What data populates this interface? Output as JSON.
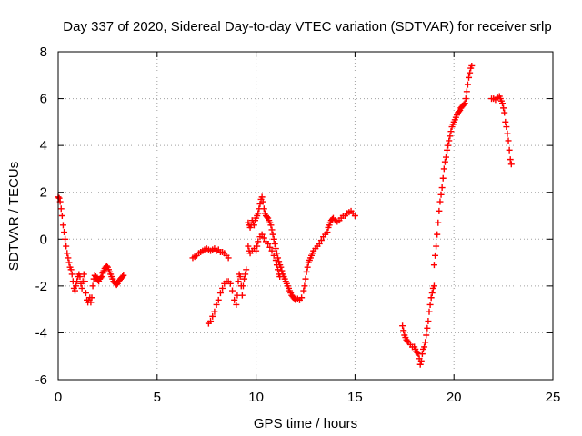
{
  "chart_data": {
    "type": "scatter",
    "title": "Day 337 of 2020, Sidereal Day-to-day VTEC variation (SDTVAR) for receiver srlp",
    "xlabel": "GPS time / hours",
    "ylabel": "SDTVAR / TECUs",
    "xlim": [
      0,
      25
    ],
    "ylim": [
      -6,
      8
    ],
    "xticks": [
      "0",
      "5",
      "10",
      "15",
      "20",
      "25"
    ],
    "yticks": [
      "-6",
      "-4",
      "-2",
      "0",
      "2",
      "4",
      "6",
      "8"
    ],
    "grid": true,
    "marker": "+",
    "series_color": "#ff0000",
    "segments": [
      [
        [
          0.0,
          1.8
        ],
        [
          0.05,
          1.75
        ],
        [
          0.1,
          1.6
        ],
        [
          0.15,
          1.3
        ],
        [
          0.2,
          1.0
        ],
        [
          0.25,
          0.6
        ],
        [
          0.3,
          0.3
        ],
        [
          0.35,
          0.0
        ],
        [
          0.4,
          -0.3
        ],
        [
          0.45,
          -0.6
        ],
        [
          0.5,
          -0.8
        ],
        [
          0.55,
          -1.0
        ],
        [
          0.6,
          -1.2
        ],
        [
          0.65,
          -1.3
        ],
        [
          0.7,
          -1.5
        ],
        [
          0.75,
          -1.8
        ],
        [
          0.8,
          -2.1
        ],
        [
          0.85,
          -2.2
        ],
        [
          0.9,
          -2.0
        ],
        [
          0.95,
          -1.8
        ],
        [
          1.0,
          -1.6
        ],
        [
          1.05,
          -1.5
        ],
        [
          1.1,
          -1.6
        ],
        [
          1.15,
          -1.9
        ],
        [
          1.2,
          -2.1
        ],
        [
          1.25,
          -1.8
        ],
        [
          1.3,
          -1.5
        ],
        [
          1.35,
          -1.8
        ],
        [
          1.4,
          -2.3
        ],
        [
          1.45,
          -2.6
        ],
        [
          1.5,
          -2.7
        ],
        [
          1.55,
          -2.6
        ],
        [
          1.6,
          -2.5
        ],
        [
          1.65,
          -2.7
        ],
        [
          1.7,
          -2.5
        ],
        [
          1.75,
          -2.0
        ],
        [
          1.8,
          -1.7
        ],
        [
          1.85,
          -1.55
        ],
        [
          1.9,
          -1.6
        ],
        [
          1.95,
          -1.65
        ],
        [
          2.0,
          -1.75
        ],
        [
          2.05,
          -1.8
        ],
        [
          2.1,
          -1.7
        ],
        [
          2.15,
          -1.65
        ],
        [
          2.2,
          -1.6
        ],
        [
          2.25,
          -1.45
        ],
        [
          2.3,
          -1.35
        ],
        [
          2.35,
          -1.25
        ],
        [
          2.4,
          -1.2
        ],
        [
          2.45,
          -1.15
        ],
        [
          2.5,
          -1.2
        ],
        [
          2.55,
          -1.3
        ],
        [
          2.6,
          -1.4
        ],
        [
          2.65,
          -1.5
        ],
        [
          2.7,
          -1.6
        ],
        [
          2.75,
          -1.7
        ],
        [
          2.8,
          -1.8
        ],
        [
          2.85,
          -1.85
        ],
        [
          2.9,
          -1.9
        ],
        [
          2.95,
          -1.95
        ],
        [
          3.0,
          -1.9
        ],
        [
          3.05,
          -1.8
        ],
        [
          3.1,
          -1.75
        ],
        [
          3.15,
          -1.7
        ],
        [
          3.2,
          -1.65
        ],
        [
          3.25,
          -1.6
        ],
        [
          3.3,
          -1.55
        ]
      ],
      [
        [
          6.8,
          -0.8
        ],
        [
          6.9,
          -0.75
        ],
        [
          7.0,
          -0.7
        ],
        [
          7.1,
          -0.6
        ],
        [
          7.2,
          -0.55
        ],
        [
          7.3,
          -0.5
        ],
        [
          7.4,
          -0.45
        ],
        [
          7.5,
          -0.4
        ],
        [
          7.6,
          -0.45
        ],
        [
          7.7,
          -0.5
        ],
        [
          7.8,
          -0.45
        ],
        [
          7.9,
          -0.4
        ],
        [
          8.0,
          -0.5
        ],
        [
          8.1,
          -0.45
        ],
        [
          8.2,
          -0.55
        ],
        [
          8.3,
          -0.55
        ],
        [
          8.4,
          -0.6
        ],
        [
          8.5,
          -0.7
        ],
        [
          8.6,
          -0.8
        ]
      ],
      [
        [
          7.6,
          -3.6
        ],
        [
          7.7,
          -3.5
        ],
        [
          7.8,
          -3.3
        ],
        [
          7.9,
          -3.1
        ],
        [
          8.0,
          -2.8
        ],
        [
          8.1,
          -2.6
        ],
        [
          8.2,
          -2.3
        ],
        [
          8.3,
          -2.1
        ],
        [
          8.4,
          -1.9
        ],
        [
          8.5,
          -1.8
        ],
        [
          8.6,
          -1.8
        ],
        [
          8.7,
          -1.9
        ],
        [
          8.8,
          -2.2
        ],
        [
          8.9,
          -2.6
        ],
        [
          9.0,
          -2.8
        ],
        [
          9.05,
          -2.4
        ],
        [
          9.1,
          -1.8
        ],
        [
          9.15,
          -1.5
        ],
        [
          9.2,
          -1.6
        ],
        [
          9.25,
          -2.0
        ],
        [
          9.3,
          -2.4
        ],
        [
          9.35,
          -2.0
        ],
        [
          9.4,
          -1.7
        ],
        [
          9.45,
          -1.5
        ],
        [
          9.5,
          -1.3
        ]
      ],
      [
        [
          9.6,
          0.7
        ],
        [
          9.65,
          0.6
        ],
        [
          9.7,
          0.5
        ],
        [
          9.75,
          0.6
        ],
        [
          9.8,
          0.8
        ],
        [
          9.85,
          0.7
        ],
        [
          9.9,
          0.6
        ],
        [
          9.95,
          0.8
        ],
        [
          10.0,
          0.9
        ],
        [
          10.05,
          1.0
        ],
        [
          10.1,
          1.1
        ],
        [
          10.15,
          1.3
        ],
        [
          10.2,
          1.5
        ],
        [
          10.25,
          1.7
        ],
        [
          10.3,
          1.8
        ],
        [
          10.35,
          1.6
        ],
        [
          10.4,
          1.3
        ],
        [
          10.45,
          1.1
        ],
        [
          10.5,
          1.0
        ],
        [
          10.55,
          0.95
        ],
        [
          10.6,
          0.9
        ],
        [
          10.65,
          0.8
        ],
        [
          10.7,
          0.7
        ],
        [
          10.75,
          0.6
        ],
        [
          10.8,
          0.4
        ],
        [
          10.85,
          0.2
        ],
        [
          10.9,
          0.0
        ],
        [
          10.95,
          -0.2
        ],
        [
          11.0,
          -0.4
        ],
        [
          11.05,
          -0.6
        ],
        [
          11.1,
          -0.8
        ],
        [
          11.15,
          -0.95
        ],
        [
          11.2,
          -1.1
        ],
        [
          11.25,
          -1.2
        ],
        [
          11.3,
          -1.35
        ],
        [
          11.35,
          -1.5
        ],
        [
          11.4,
          -1.6
        ],
        [
          11.45,
          -1.7
        ],
        [
          11.5,
          -1.8
        ],
        [
          11.55,
          -1.9
        ],
        [
          11.6,
          -2.0
        ],
        [
          11.65,
          -2.1
        ],
        [
          11.7,
          -2.2
        ],
        [
          11.75,
          -2.3
        ],
        [
          11.8,
          -2.4
        ],
        [
          11.85,
          -2.45
        ],
        [
          11.9,
          -2.5
        ],
        [
          11.95,
          -2.55
        ],
        [
          12.0,
          -2.6
        ],
        [
          12.1,
          -2.55
        ],
        [
          12.2,
          -2.6
        ],
        [
          12.3,
          -2.5
        ]
      ],
      [
        [
          9.6,
          -0.3
        ],
        [
          9.65,
          -0.5
        ],
        [
          9.7,
          -0.6
        ],
        [
          9.8,
          -0.5
        ],
        [
          9.9,
          -0.4
        ],
        [
          10.0,
          -0.5
        ],
        [
          10.05,
          -0.3
        ],
        [
          10.1,
          -0.1
        ],
        [
          10.2,
          0.1
        ],
        [
          10.3,
          0.2
        ],
        [
          10.4,
          0.05
        ],
        [
          10.5,
          -0.1
        ],
        [
          10.6,
          -0.2
        ],
        [
          10.7,
          -0.35
        ],
        [
          10.8,
          -0.5
        ],
        [
          10.9,
          -0.7
        ],
        [
          11.0,
          -0.9
        ],
        [
          11.05,
          -1.1
        ],
        [
          11.1,
          -1.3
        ],
        [
          11.15,
          -1.5
        ],
        [
          11.2,
          -1.6
        ]
      ],
      [
        [
          12.4,
          -2.2
        ],
        [
          12.45,
          -2.0
        ],
        [
          12.5,
          -1.7
        ],
        [
          12.55,
          -1.4
        ],
        [
          12.6,
          -1.2
        ],
        [
          12.65,
          -1.0
        ],
        [
          12.7,
          -0.9
        ],
        [
          12.75,
          -0.8
        ],
        [
          12.8,
          -0.7
        ],
        [
          12.85,
          -0.6
        ],
        [
          12.9,
          -0.5
        ],
        [
          13.0,
          -0.4
        ],
        [
          13.1,
          -0.3
        ],
        [
          13.2,
          -0.2
        ],
        [
          13.3,
          -0.05
        ],
        [
          13.4,
          0.1
        ],
        [
          13.5,
          0.2
        ],
        [
          13.6,
          0.3
        ],
        [
          13.65,
          0.5
        ],
        [
          13.7,
          0.6
        ],
        [
          13.75,
          0.7
        ],
        [
          13.8,
          0.8
        ],
        [
          13.85,
          0.85
        ],
        [
          13.9,
          0.9
        ],
        [
          14.0,
          0.8
        ],
        [
          14.1,
          0.75
        ],
        [
          14.2,
          0.8
        ],
        [
          14.3,
          0.9
        ],
        [
          14.4,
          1.0
        ],
        [
          14.5,
          1.0
        ],
        [
          14.6,
          1.1
        ],
        [
          14.7,
          1.15
        ],
        [
          14.8,
          1.2
        ],
        [
          14.9,
          1.1
        ],
        [
          15.0,
          1.0
        ]
      ],
      [
        [
          17.4,
          -3.7
        ],
        [
          17.45,
          -3.9
        ],
        [
          17.5,
          -4.1
        ],
        [
          17.55,
          -4.2
        ],
        [
          17.6,
          -4.3
        ],
        [
          17.65,
          -4.35
        ],
        [
          17.7,
          -4.4
        ],
        [
          17.8,
          -4.5
        ],
        [
          17.9,
          -4.6
        ],
        [
          18.0,
          -4.6
        ],
        [
          18.05,
          -4.7
        ],
        [
          18.1,
          -4.8
        ],
        [
          18.15,
          -4.85
        ],
        [
          18.2,
          -4.9
        ],
        [
          18.25,
          -5.1
        ],
        [
          18.3,
          -5.35
        ],
        [
          18.35,
          -5.2
        ],
        [
          18.4,
          -4.9
        ],
        [
          18.45,
          -4.7
        ],
        [
          18.5,
          -4.6
        ],
        [
          18.55,
          -4.4
        ],
        [
          18.6,
          -4.1
        ],
        [
          18.65,
          -3.8
        ],
        [
          18.7,
          -3.5
        ],
        [
          18.75,
          -3.1
        ],
        [
          18.8,
          -2.8
        ],
        [
          18.85,
          -2.5
        ],
        [
          18.9,
          -2.3
        ],
        [
          18.95,
          -2.1
        ],
        [
          19.0,
          -2.0
        ]
      ],
      [
        [
          19.0,
          -1.1
        ],
        [
          19.05,
          -0.7
        ],
        [
          19.1,
          -0.3
        ],
        [
          19.15,
          0.2
        ],
        [
          19.2,
          0.7
        ],
        [
          19.25,
          1.2
        ],
        [
          19.3,
          1.6
        ],
        [
          19.35,
          1.9
        ],
        [
          19.4,
          2.2
        ],
        [
          19.45,
          2.6
        ],
        [
          19.5,
          3.0
        ],
        [
          19.55,
          3.3
        ],
        [
          19.6,
          3.5
        ],
        [
          19.65,
          3.8
        ],
        [
          19.7,
          4.0
        ],
        [
          19.75,
          4.2
        ],
        [
          19.8,
          4.4
        ],
        [
          19.85,
          4.6
        ],
        [
          19.9,
          4.8
        ],
        [
          19.95,
          4.9
        ],
        [
          20.0,
          5.0
        ],
        [
          20.05,
          5.1
        ],
        [
          20.1,
          5.2
        ],
        [
          20.15,
          5.3
        ],
        [
          20.2,
          5.4
        ],
        [
          20.25,
          5.45
        ],
        [
          20.3,
          5.5
        ],
        [
          20.35,
          5.6
        ],
        [
          20.4,
          5.65
        ],
        [
          20.45,
          5.7
        ],
        [
          20.5,
          5.75
        ],
        [
          20.55,
          5.8
        ],
        [
          20.6,
          6.0
        ],
        [
          20.65,
          6.3
        ],
        [
          20.7,
          6.6
        ],
        [
          20.75,
          6.9
        ],
        [
          20.8,
          7.1
        ],
        [
          20.85,
          7.3
        ],
        [
          20.9,
          7.4
        ]
      ],
      [
        [
          21.9,
          6.0
        ],
        [
          22.0,
          6.0
        ],
        [
          22.1,
          5.95
        ],
        [
          22.2,
          6.05
        ],
        [
          22.3,
          6.1
        ],
        [
          22.35,
          6.0
        ],
        [
          22.4,
          5.9
        ],
        [
          22.45,
          5.8
        ],
        [
          22.5,
          5.6
        ],
        [
          22.55,
          5.4
        ],
        [
          22.6,
          5.0
        ],
        [
          22.65,
          4.8
        ],
        [
          22.7,
          4.5
        ],
        [
          22.75,
          4.2
        ],
        [
          22.8,
          3.8
        ],
        [
          22.85,
          3.4
        ],
        [
          22.9,
          3.2
        ]
      ]
    ]
  }
}
